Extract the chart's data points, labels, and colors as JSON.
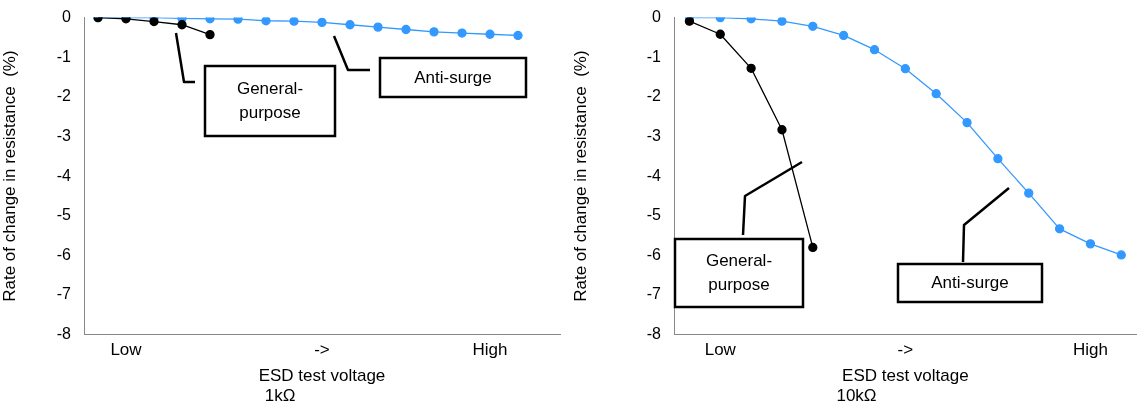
{
  "chart_data": [
    {
      "type": "line",
      "title": "1kΩ",
      "xlabel": "ESD test voltage",
      "ylabel": "Rate of change in resistance  (%)",
      "categories": [
        null,
        "Low",
        null,
        null,
        null,
        null,
        null,
        null,
        "->",
        null,
        null,
        null,
        null,
        null,
        "High",
        null,
        null
      ],
      "ylim": [
        -8,
        0
      ],
      "yticks": [
        0,
        -1,
        -2,
        -3,
        -4,
        -5,
        -6,
        -7,
        -8
      ],
      "grid": false,
      "legend": false,
      "marker": "circle",
      "series": [
        {
          "name": "General-purpose",
          "color": "#000000",
          "values": [
            0,
            -0.03,
            -0.1,
            -0.18,
            -0.43,
            null,
            null,
            null,
            null,
            null,
            null,
            null,
            null,
            null,
            null,
            null,
            null
          ]
        },
        {
          "name": "Anti-surge",
          "color": "#3399ff",
          "values": [
            0,
            0,
            0,
            -0.02,
            -0.03,
            -0.04,
            -0.08,
            -0.09,
            -0.12,
            -0.18,
            -0.24,
            -0.3,
            -0.36,
            -0.39,
            -0.42,
            -0.45,
            null
          ]
        }
      ]
    },
    {
      "type": "line",
      "title": "10kΩ",
      "xlabel": "ESD test voltage",
      "ylabel": "Rate of change in resistance  (%)",
      "categories": [
        null,
        "Low",
        null,
        null,
        null,
        null,
        null,
        "->",
        null,
        null,
        null,
        null,
        null,
        "High",
        null
      ],
      "ylim": [
        -8,
        0
      ],
      "yticks": [
        0,
        -1,
        -2,
        -3,
        -4,
        -5,
        -6,
        -7,
        -8
      ],
      "grid": false,
      "legend": false,
      "marker": "circle",
      "series": [
        {
          "name": "General-purpose",
          "color": "#000000",
          "values": [
            -0.09,
            -0.42,
            -1.28,
            -2.83,
            -5.8,
            null,
            null,
            null,
            null,
            null,
            null,
            null,
            null,
            null,
            null
          ]
        },
        {
          "name": "Anti-surge",
          "color": "#3399ff",
          "values": [
            0,
            0,
            -0.03,
            -0.09,
            -0.22,
            -0.45,
            -0.81,
            -1.29,
            -1.92,
            -2.65,
            -3.56,
            -4.43,
            -5.33,
            -5.71,
            -5.99
          ]
        }
      ]
    }
  ]
}
